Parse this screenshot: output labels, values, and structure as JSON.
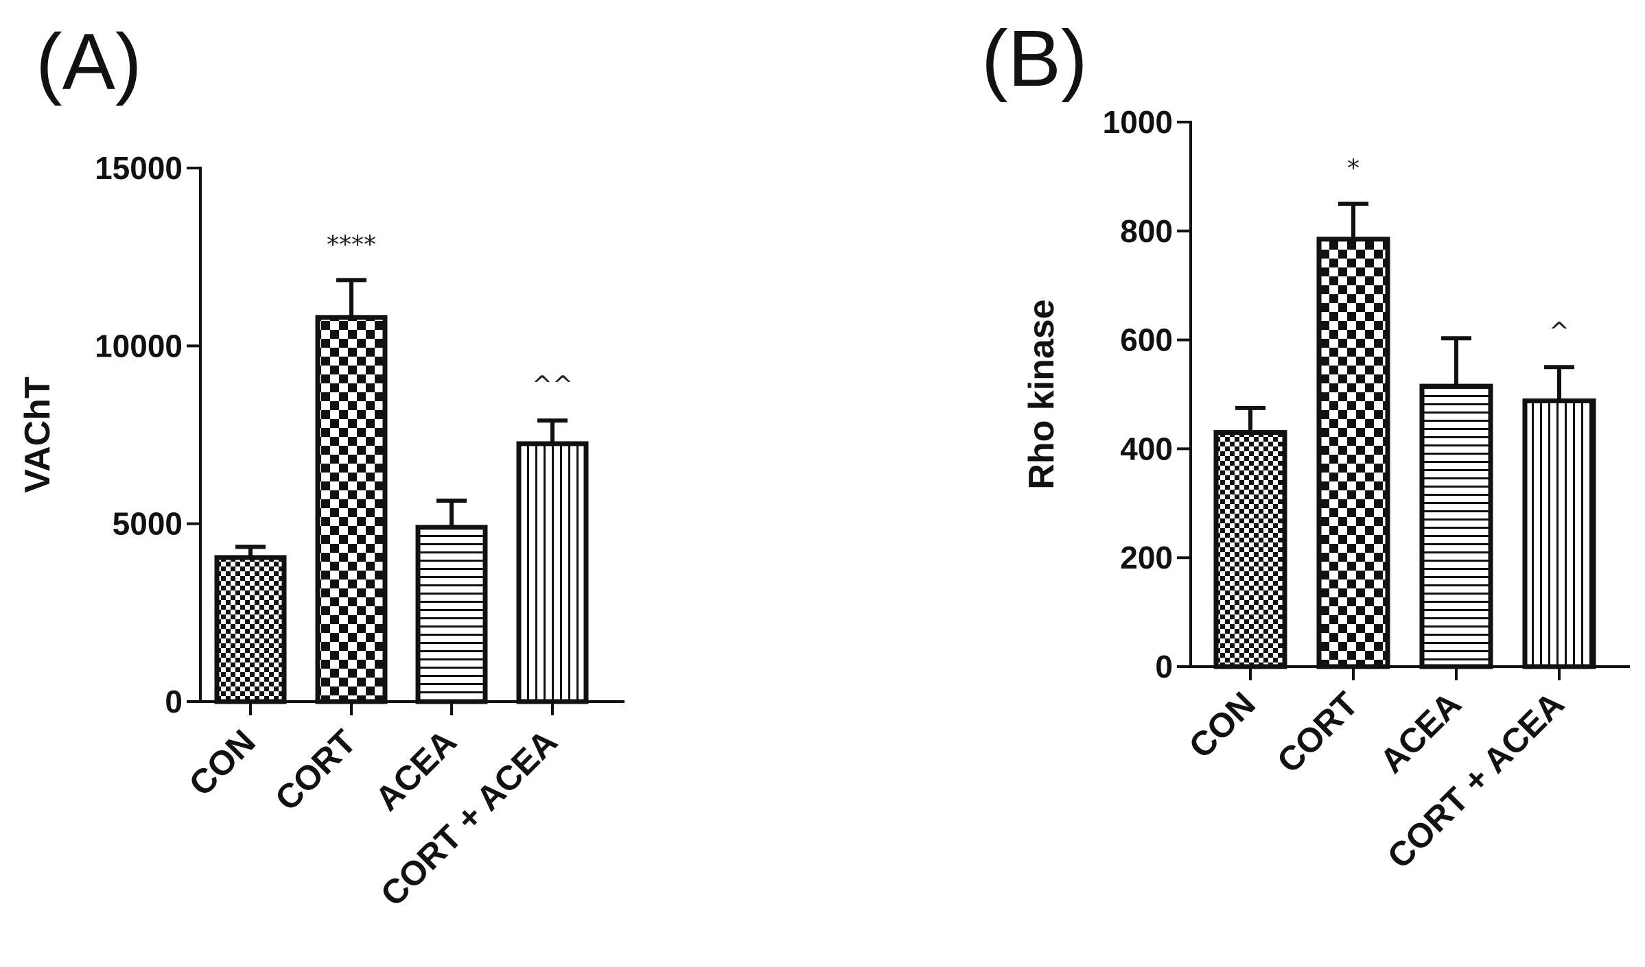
{
  "panels": {
    "A": {
      "letter": "(A)"
    },
    "B": {
      "letter": "(B)"
    }
  },
  "chart_data": [
    {
      "type": "bar",
      "panel": "(A)",
      "ylabel": "VAChT",
      "xlabel": "",
      "ylim": [
        0,
        15000
      ],
      "yticks": [
        0,
        5000,
        10000,
        15000
      ],
      "categories": [
        "CON",
        "CORT",
        "ACEA",
        "CORT + ACEA"
      ],
      "values": [
        4050,
        10800,
        4900,
        7250
      ],
      "errors": [
        300,
        1050,
        750,
        650
      ],
      "significance": [
        "",
        "****",
        "",
        "^^"
      ],
      "patterns": [
        "checker-fine",
        "checker-coarse",
        "horizontal-lines",
        "vertical-lines"
      ],
      "grid": false,
      "legend": "none"
    },
    {
      "type": "bar",
      "panel": "(B)",
      "ylabel": "Rho kinase",
      "xlabel": "",
      "ylim": [
        0,
        1000
      ],
      "yticks": [
        0,
        200,
        400,
        600,
        800,
        1000
      ],
      "categories": [
        "CON",
        "CORT",
        "ACEA",
        "CORT + ACEA"
      ],
      "values": [
        430,
        785,
        515,
        488
      ],
      "errors": [
        45,
        65,
        88,
        62
      ],
      "significance": [
        "",
        "*",
        "",
        "^"
      ],
      "patterns": [
        "checker-fine",
        "checker-coarse",
        "horizontal-lines",
        "vertical-lines"
      ],
      "grid": false,
      "legend": "none"
    }
  ],
  "colors": {
    "ink": "#111111",
    "fill": "#ffffff"
  }
}
